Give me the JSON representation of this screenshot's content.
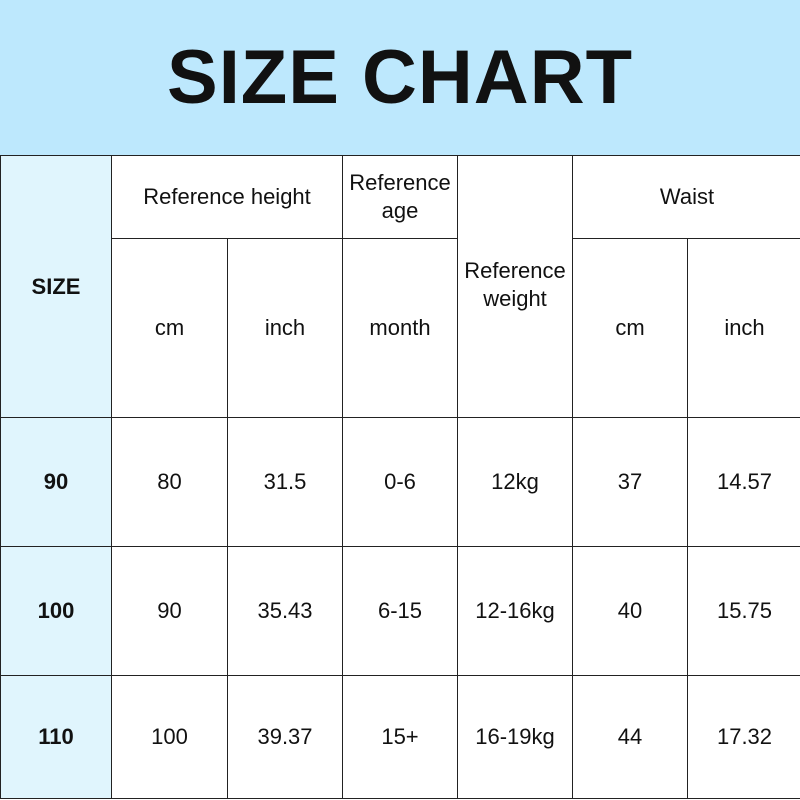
{
  "title": "SIZE CHART",
  "colors": {
    "banner": "#bde8fd",
    "size_column": "#e0f5fd"
  },
  "headers": {
    "size": "SIZE",
    "ref_height": "Reference height",
    "ref_age": "Reference age",
    "ref_weight": "Reference weight",
    "waist": "Waist",
    "height_cm": "cm",
    "height_inch": "inch",
    "age_month": "month",
    "waist_cm": "cm",
    "waist_inch": "inch"
  },
  "rows": [
    {
      "size": "90",
      "height_cm": "80",
      "height_inch": "31.5",
      "age": "0-6",
      "weight": "12kg",
      "waist_cm": "37",
      "waist_inch": "14.57"
    },
    {
      "size": "100",
      "height_cm": "90",
      "height_inch": "35.43",
      "age": "6-15",
      "weight": "12-16kg",
      "waist_cm": "40",
      "waist_inch": "15.75"
    },
    {
      "size": "110",
      "height_cm": "100",
      "height_inch": "39.37",
      "age": "15+",
      "weight": "16-19kg",
      "waist_cm": "44",
      "waist_inch": "17.32"
    }
  ]
}
